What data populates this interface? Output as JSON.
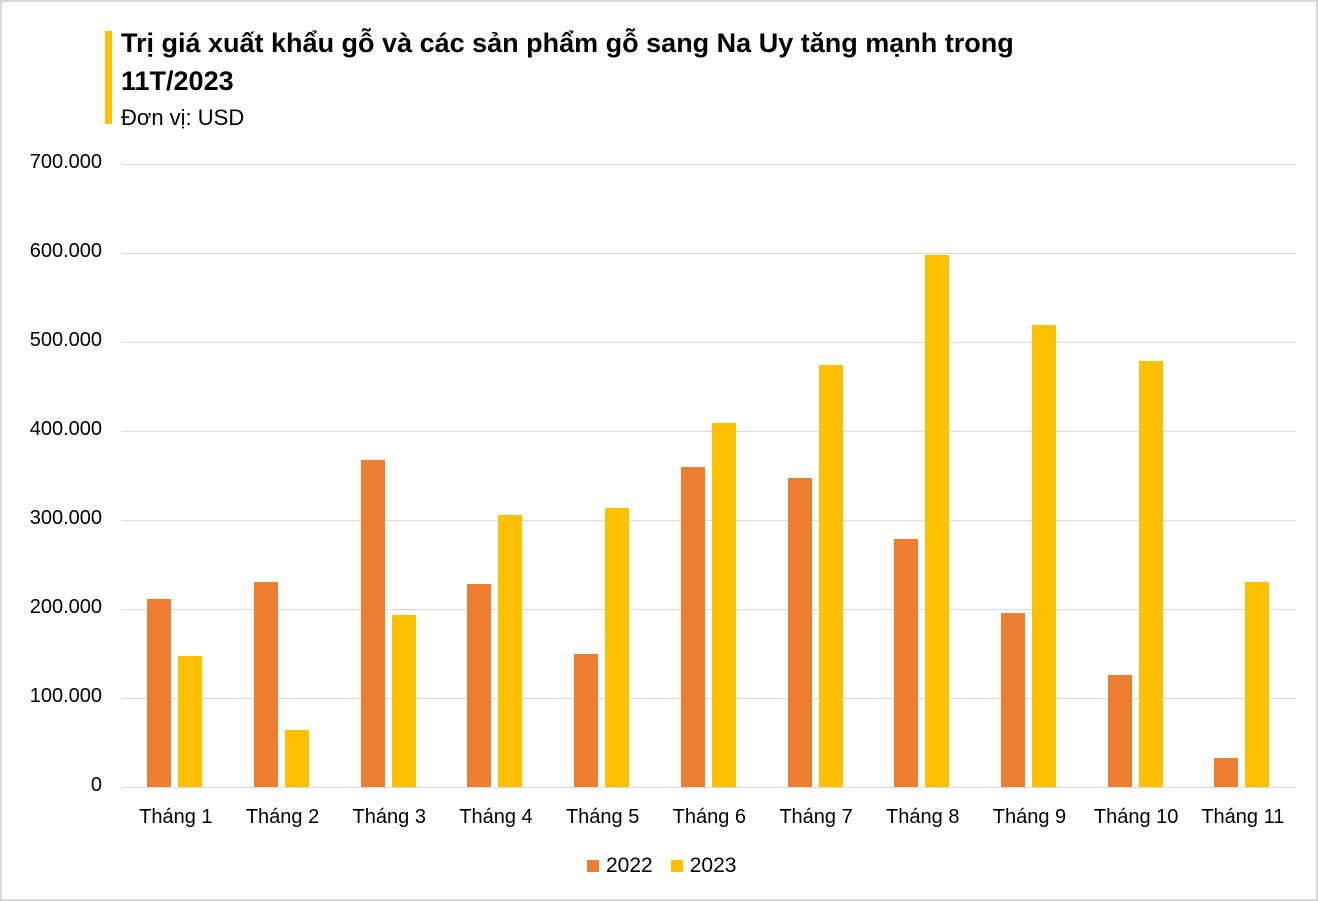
{
  "chart_data": {
    "type": "bar",
    "title": "Trị giá xuất khẩu gỗ và các sản phẩm gỗ sang Na Uy tăng mạnh trong 11T/2023",
    "subtitle": "Đơn vị: USD",
    "xlabel": "",
    "ylabel": "",
    "ylim": [
      0,
      700000
    ],
    "yticks": [
      "0",
      "100.000",
      "200.000",
      "300.000",
      "400.000",
      "500.000",
      "600.000",
      "700.000"
    ],
    "grid": true,
    "legend_position": "bottom",
    "categories": [
      "Tháng 1",
      "Tháng 2",
      "Tháng 3",
      "Tháng 4",
      "Tháng 5",
      "Tháng 6",
      "Tháng 7",
      "Tháng 8",
      "Tháng 9",
      "Tháng 10",
      "Tháng 11"
    ],
    "series": [
      {
        "name": "2022",
        "color": "#ed7d31",
        "values": [
          211000,
          230000,
          367000,
          228000,
          149000,
          360000,
          347000,
          279000,
          196000,
          126000,
          33000
        ]
      },
      {
        "name": "2023",
        "color": "#ffc000",
        "values": [
          147000,
          64000,
          193000,
          306000,
          313000,
          409000,
          474000,
          598000,
          519000,
          479000,
          230000
        ]
      }
    ]
  }
}
